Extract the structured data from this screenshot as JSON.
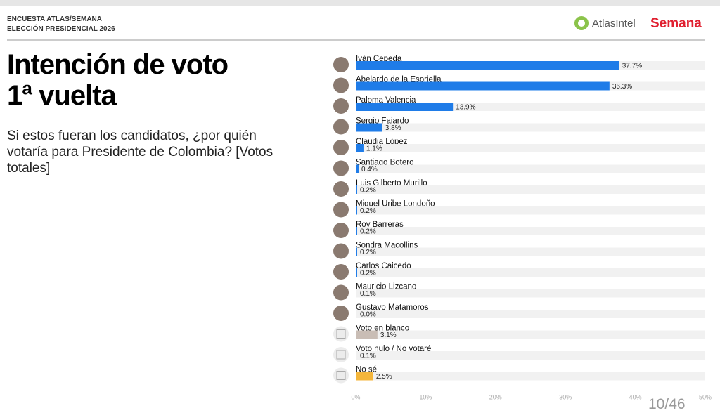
{
  "header": {
    "survey": "ENCUESTA ATLAS/SEMANA",
    "election": "ELECCIÓN PRESIDENCIAL 2026",
    "logo_left": "AtlasIntel",
    "logo_right": "Semana"
  },
  "page_number": "10/46",
  "chart_data": {
    "type": "bar",
    "orientation": "horizontal",
    "title": [
      "Intención de voto",
      "1ª vuelta"
    ],
    "subtitle": "Si estos fueran los candidatos, ¿por quién votaría para Presidente de Colombia? [Votos totales]",
    "categories": [
      "Iván Cepeda",
      "Abelardo de la Espriella",
      "Paloma Valencia",
      "Sergio Fajardo",
      "Claudia López",
      "Santiago Botero",
      "Luis Gilberto Murillo",
      "Miguel Uribe Londoño",
      "Roy Barreras",
      "Sondra Macollins",
      "Carlos Caicedo",
      "Mauricio Lizcano",
      "Gustavo Matamoros",
      "Voto en blanco",
      "Voto nulo / No votaré",
      "No sé"
    ],
    "values": [
      37.7,
      36.3,
      13.9,
      3.8,
      1.1,
      0.4,
      0.2,
      0.2,
      0.2,
      0.2,
      0.2,
      0.1,
      0.0,
      3.1,
      0.1,
      2.5
    ],
    "value_labels": [
      "37.7%",
      "36.3%",
      "13.9%",
      "3.8%",
      "1.1%",
      "0.4%",
      "0.2%",
      "0.2%",
      "0.2%",
      "0.2%",
      "0.2%",
      "0.1%",
      "0.0%",
      "3.1%",
      "0.1%",
      "2.5%"
    ],
    "colors": [
      "#1f7ce8",
      "#1f7ce8",
      "#1f7ce8",
      "#1f7ce8",
      "#1f7ce8",
      "#1f7ce8",
      "#1f7ce8",
      "#1f7ce8",
      "#1f7ce8",
      "#1f7ce8",
      "#1f7ce8",
      "#1f7ce8",
      "#1f7ce8",
      "#c9bdb5",
      "#1f7ce8",
      "#f4b63b"
    ],
    "xlim": [
      0,
      50
    ],
    "xticks": [
      {
        "value": 0,
        "label": "0%"
      },
      {
        "value": 10,
        "label": "10%"
      },
      {
        "value": 20,
        "label": "20%"
      },
      {
        "value": 30,
        "label": "30%"
      },
      {
        "value": 40,
        "label": "40%"
      },
      {
        "value": 50,
        "label": "50%"
      }
    ]
  }
}
